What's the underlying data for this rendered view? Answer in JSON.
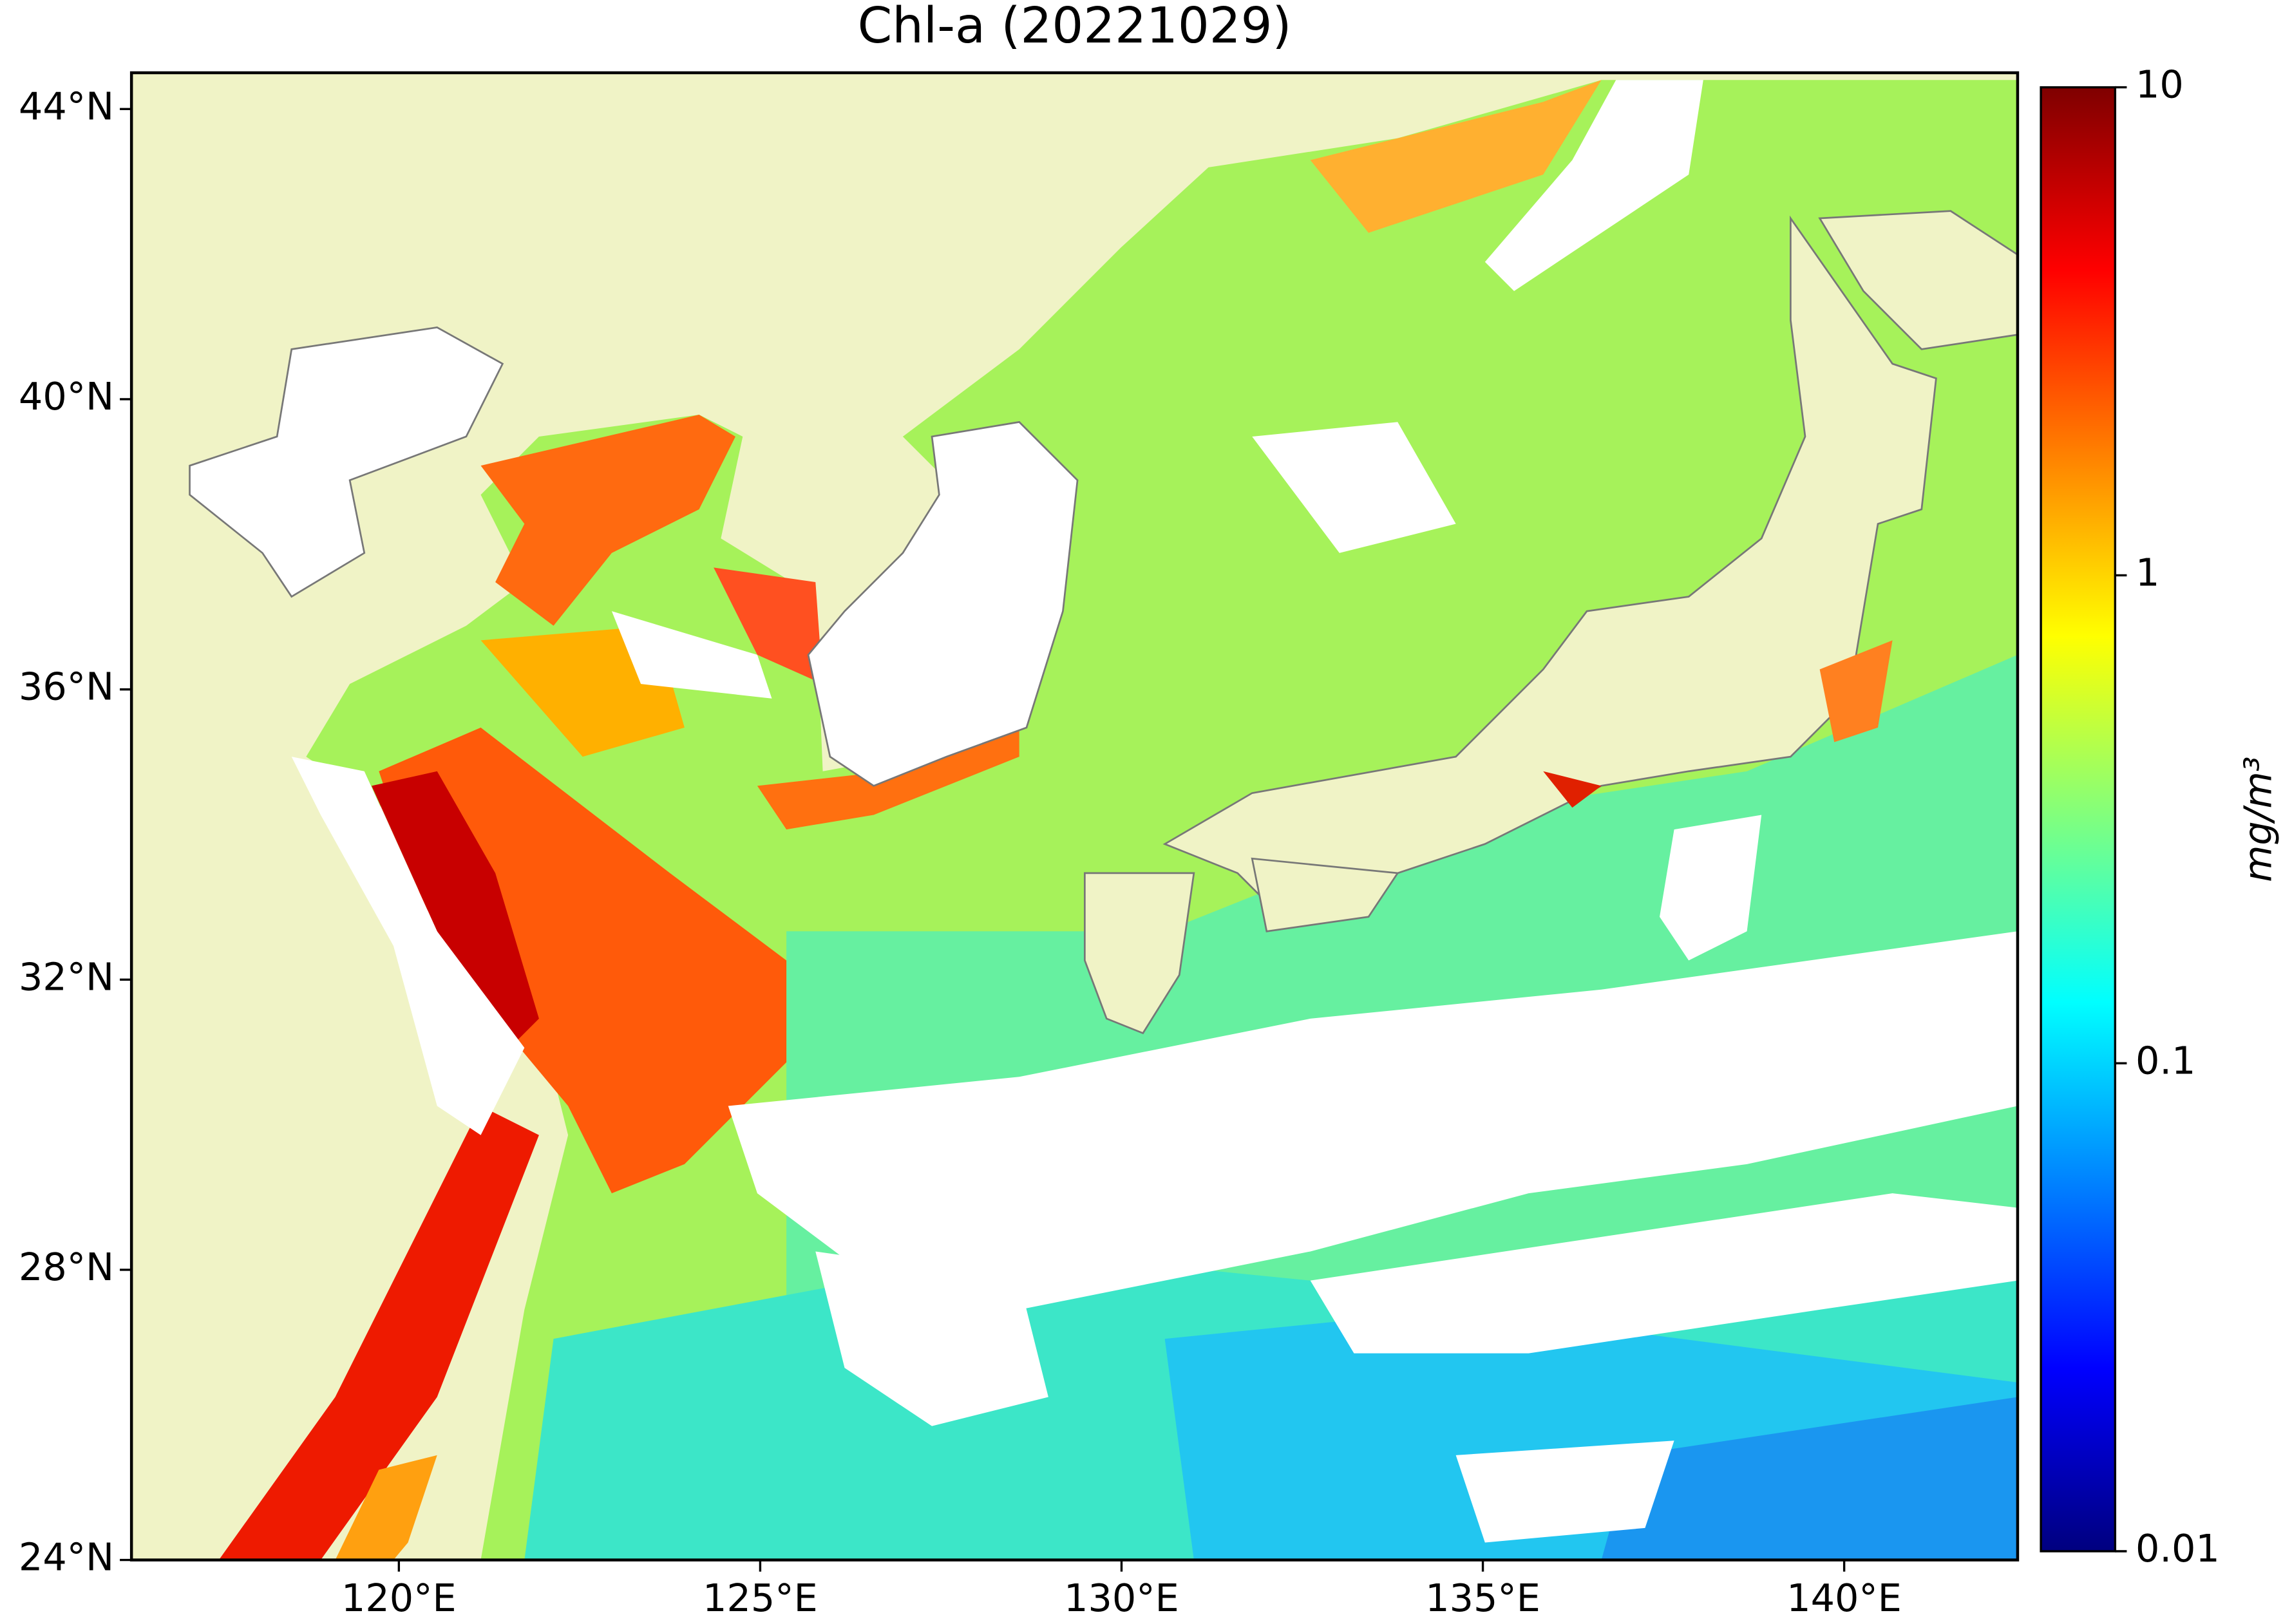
{
  "chart_data": {
    "type": "map",
    "title": "Chl-a (20221029)",
    "xlim": [
      116.3,
      142.4
    ],
    "ylim": [
      24,
      44.5
    ],
    "xticks": [
      {
        "value": 120,
        "label": "120°E"
      },
      {
        "value": 125,
        "label": "125°E"
      },
      {
        "value": 130,
        "label": "130°E"
      },
      {
        "value": 135,
        "label": "135°E"
      },
      {
        "value": 140,
        "label": "140°E"
      }
    ],
    "yticks": [
      {
        "value": 24,
        "label": "24°N"
      },
      {
        "value": 28,
        "label": "28°N"
      },
      {
        "value": 32,
        "label": "32°N"
      },
      {
        "value": 36,
        "label": "36°N"
      },
      {
        "value": 40,
        "label": "40°N"
      },
      {
        "value": 44,
        "label": "44°N"
      }
    ],
    "colorbar": {
      "label": "mg/m³",
      "log": true,
      "lim": [
        0.01,
        10
      ],
      "ticks": [
        0.01,
        0.1,
        1,
        10
      ],
      "colormap": [
        "#00007f",
        "#0000ff",
        "#0080ff",
        "#00ffff",
        "#7fff7f",
        "#ffff00",
        "#ff8000",
        "#ff0000",
        "#7f0000"
      ]
    }
  }
}
